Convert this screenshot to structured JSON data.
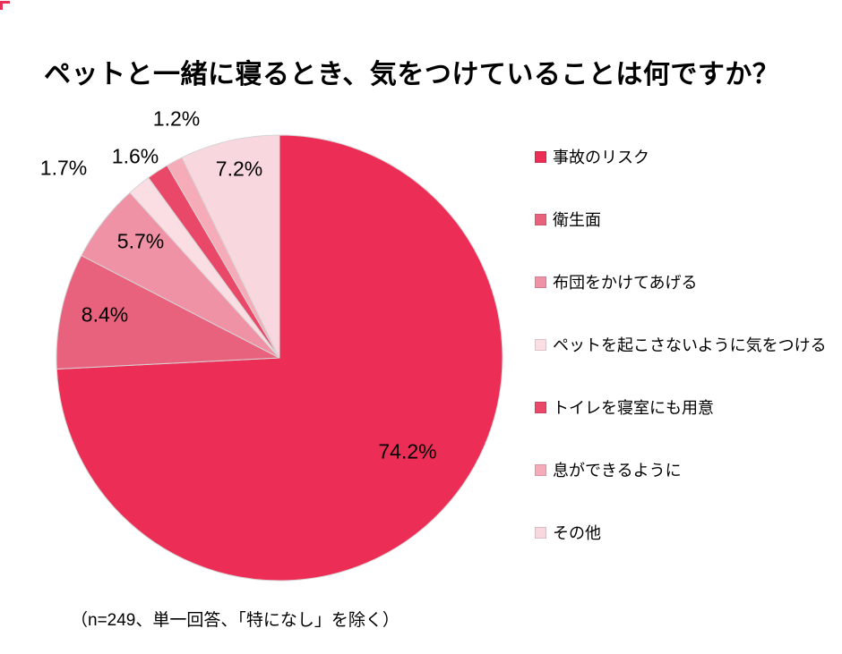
{
  "title": "ペットと一緒に寝るとき、気をつけていることは何ですか？",
  "note": "（n=249、単一回答、「特になし」を除く）",
  "sample_size": 249,
  "chart_data": {
    "type": "pie",
    "title": "ペットと一緒に寝るとき、気をつけていることは何ですか？",
    "unit": "%",
    "start_angle_deg": 0,
    "direction": "clockwise",
    "legend_position": "right",
    "stroke_color": "#d6d4d4",
    "slices": [
      {
        "label": "事故のリスク",
        "value": 74.2,
        "display": "74.2%",
        "color": "#ec2d55"
      },
      {
        "label": "衛生面",
        "value": 8.4,
        "display": "8.4%",
        "color": "#e8627e"
      },
      {
        "label": "布団をかけてあげる",
        "value": 5.7,
        "display": "5.7%",
        "color": "#f092a5"
      },
      {
        "label": "ペットを起こさないように気をつける",
        "value": 1.7,
        "display": "1.7%",
        "color": "#fbdee4"
      },
      {
        "label": "トイレを寝室にも用意",
        "value": 1.6,
        "display": "1.6%",
        "color": "#e94869"
      },
      {
        "label": "息ができるように",
        "value": 1.2,
        "display": "1.2%",
        "color": "#f5abb8"
      },
      {
        "label": "その他",
        "value": 7.2,
        "display": "7.2%",
        "color": "#f8d7de"
      }
    ]
  }
}
